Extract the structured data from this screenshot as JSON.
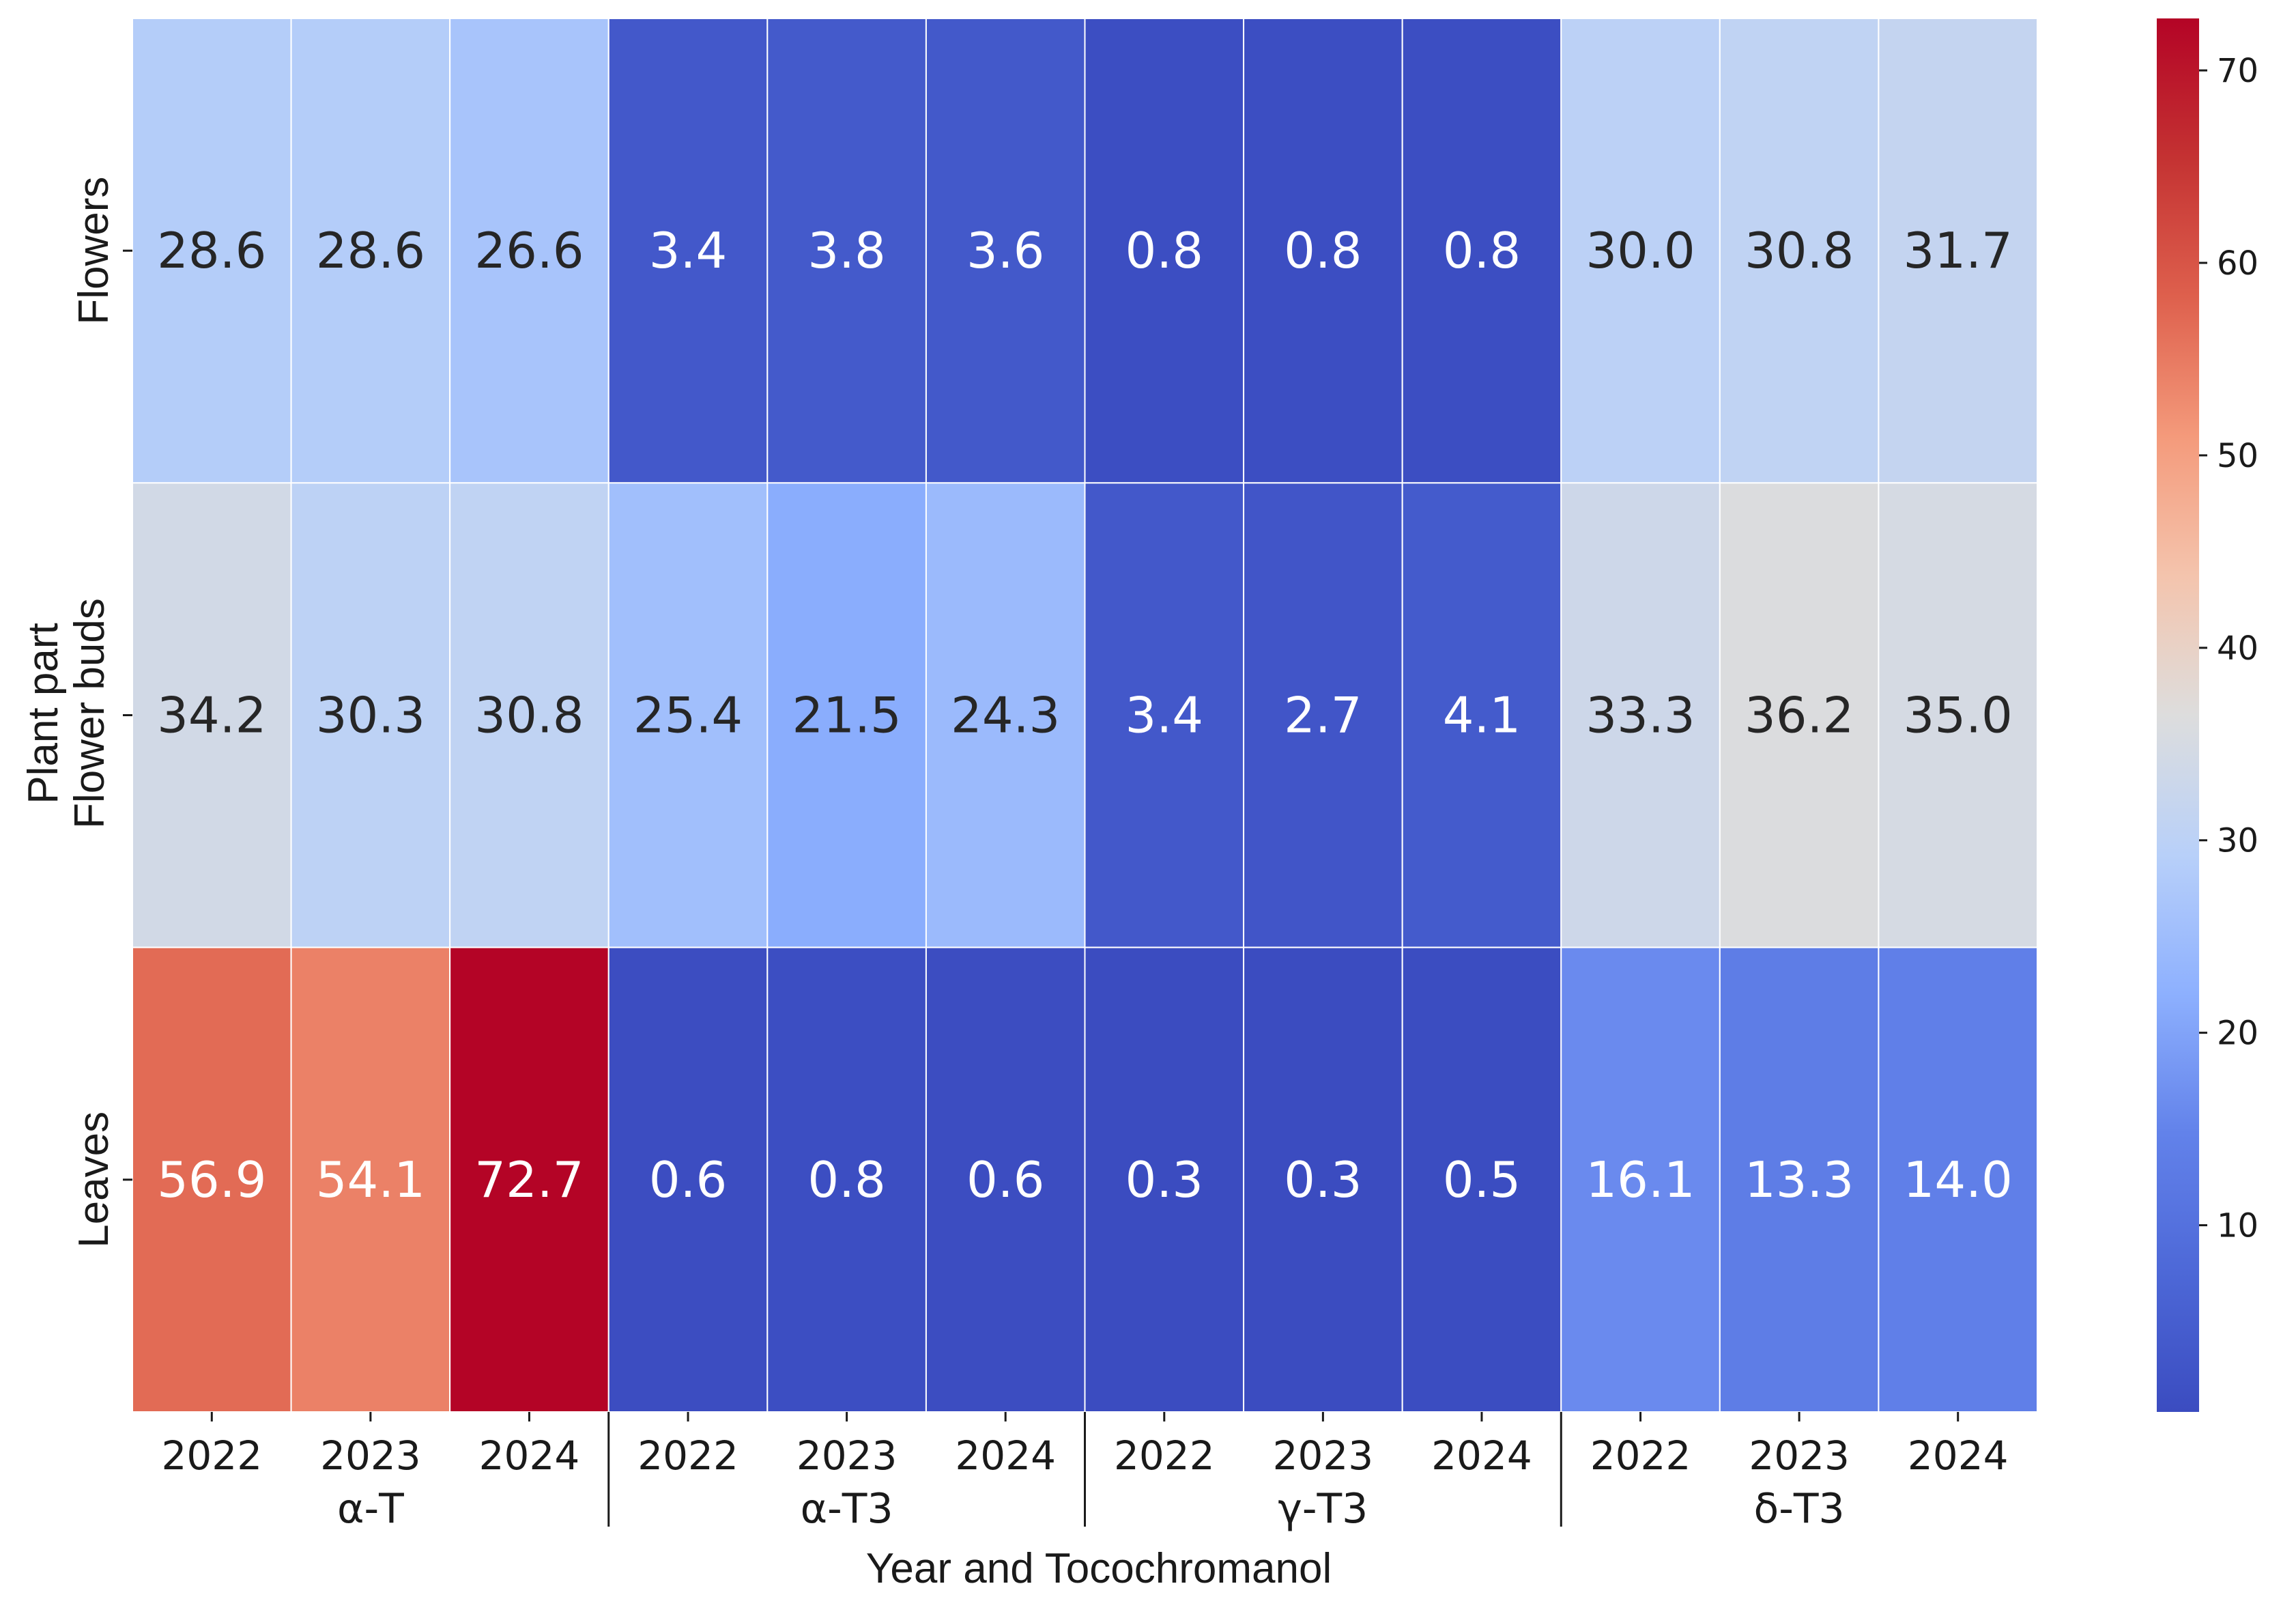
{
  "chart_data": {
    "type": "heatmap",
    "title": "",
    "xlabel": "Year and Tocochromanol",
    "ylabel_lines": [
      "Plant part",
      "Flower buds"
    ],
    "rows": [
      "Flowers",
      "Flower buds",
      "Leaves"
    ],
    "groups": [
      "α-T",
      "α-T3",
      "γ-T3",
      "δ-T3"
    ],
    "years": [
      "2022",
      "2023",
      "2024"
    ],
    "values": [
      [
        28.6,
        28.6,
        26.6,
        3.4,
        3.8,
        3.6,
        0.8,
        0.8,
        0.8,
        30.0,
        30.8,
        31.7
      ],
      [
        34.2,
        30.3,
        30.8,
        25.4,
        21.5,
        24.3,
        3.4,
        2.7,
        4.1,
        33.3,
        36.2,
        35.0
      ],
      [
        56.9,
        54.1,
        72.7,
        0.6,
        0.8,
        0.6,
        0.3,
        0.3,
        0.5,
        16.1,
        13.3,
        14.0
      ]
    ],
    "colormap": "coolwarm",
    "vmin": 0.3,
    "vmax": 72.7,
    "colorbar_ticks": [
      10,
      20,
      30,
      40,
      50,
      60,
      70
    ]
  }
}
